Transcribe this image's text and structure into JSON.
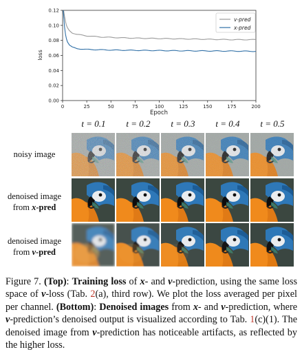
{
  "chart_data": {
    "type": "line",
    "xlabel": "Epoch",
    "ylabel": "loss",
    "xlim": [
      0,
      200
    ],
    "ylim": [
      0.0,
      0.12
    ],
    "xticks": [
      "0",
      "25",
      "50",
      "75",
      "100",
      "125",
      "150",
      "175",
      "200"
    ],
    "yticks": [
      "0.00",
      "0.02",
      "0.04",
      "0.06",
      "0.08",
      "0.10",
      "0.12"
    ],
    "legend_position": "top-right",
    "grid": false,
    "series": [
      {
        "name": "v-pred",
        "color": "#9a9a9a",
        "x": [
          0,
          1,
          2,
          3,
          4,
          5,
          7,
          10,
          15,
          20,
          25,
          30,
          40,
          50,
          60,
          75,
          100,
          125,
          150,
          175,
          200
        ],
        "y": [
          0.13,
          0.12,
          0.112,
          0.105,
          0.1,
          0.097,
          0.093,
          0.09,
          0.088,
          0.087,
          0.086,
          0.0855,
          0.0845,
          0.084,
          0.0835,
          0.083,
          0.0825,
          0.082,
          0.0815,
          0.081,
          0.081
        ]
      },
      {
        "name": "x-pred",
        "color": "#2f6fa6",
        "x": [
          0,
          1,
          2,
          3,
          4,
          5,
          7,
          10,
          15,
          20,
          25,
          30,
          40,
          50,
          60,
          75,
          100,
          125,
          150,
          175,
          200
        ],
        "y": [
          0.13,
          0.115,
          0.098,
          0.088,
          0.082,
          0.078,
          0.074,
          0.071,
          0.069,
          0.0685,
          0.068,
          0.0678,
          0.0675,
          0.0672,
          0.067,
          0.0668,
          0.0665,
          0.0662,
          0.066,
          0.0658,
          0.0655
        ]
      }
    ]
  },
  "legend": {
    "v_pred": "v-pred",
    "x_pred": "x-pred"
  },
  "grid": {
    "column_labels": [
      "t = 0.1",
      "t = 0.2",
      "t = 0.3",
      "t = 0.4",
      "t = 0.5"
    ],
    "rows": [
      {
        "label_line1": "noisy image",
        "label_line2": ""
      },
      {
        "label_line1": "denoised image",
        "label_line2_prefix": "from ",
        "label_line2_var": "x",
        "label_line2_suffix": "-pred"
      },
      {
        "label_line1": "denoised image",
        "label_line2_prefix": "from ",
        "label_line2_var": "v",
        "label_line2_suffix": "-pred"
      }
    ],
    "noise_levels": [
      0.9,
      0.75,
      0.6,
      0.45,
      0.35
    ],
    "artifact_levels": [
      0.8,
      0.35,
      0.15,
      0.05,
      0.0
    ]
  },
  "caption": {
    "fig": "Figure 7. ",
    "top_label": "(Top)",
    "p1": ": ",
    "training_loss": "Training loss",
    "p2": " of ",
    "p3": "- and ",
    "p4": "-prediction, using the same loss space of ",
    "p5": "-loss (Tab. ",
    "ref1": "2",
    "p6": "(a), third row). We plot the loss averaged per pixel per channel. ",
    "bottom_label": "(Bottom)",
    "p7": ": ",
    "denoised_images": "Denoised images",
    "p8": " from ",
    "p9": "- and ",
    "p10": "-prediction, where ",
    "p11": "-prediction’s denoised output is visualized according to Tab. ",
    "ref2": "1",
    "p12": "(c)(1). The denoised image from ",
    "p13": "-prediction has noticeable artifacts, as reflected by the higher loss.",
    "var_x": "x",
    "var_v": "v"
  }
}
